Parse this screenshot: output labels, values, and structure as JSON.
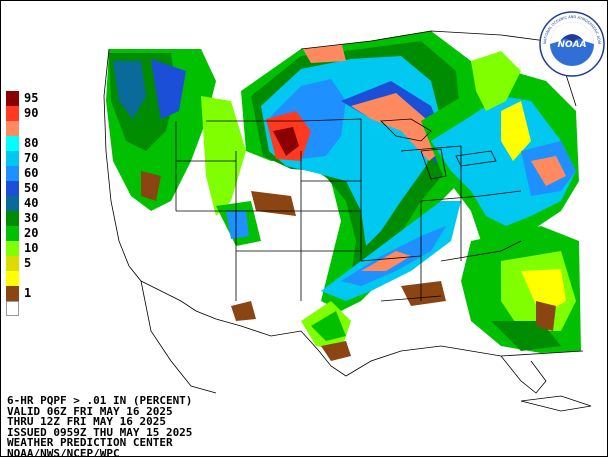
{
  "legend": [
    {
      "label": "95",
      "color": "#8b0000"
    },
    {
      "label": "90",
      "color": "#ff3a20"
    },
    {
      "label": "",
      "color": "#ff8a60"
    },
    {
      "label": "80",
      "color": "#00ffff"
    },
    {
      "label": "70",
      "color": "#00c8f0"
    },
    {
      "label": "60",
      "color": "#1e90ff"
    },
    {
      "label": "50",
      "color": "#1c4fd8"
    },
    {
      "label": "40",
      "color": "#0a6a9a"
    },
    {
      "label": "30",
      "color": "#008c00"
    },
    {
      "label": "20",
      "color": "#00c000"
    },
    {
      "label": "10",
      "color": "#7fff00"
    },
    {
      "label": "5",
      "color": "#dcdc00"
    },
    {
      "label": "",
      "color": "#ffff00"
    },
    {
      "label": "1",
      "color": "#8b4513"
    },
    {
      "label": "",
      "color": "#ffffff"
    }
  ],
  "info": {
    "line1": "6-HR PQPF > .01 IN (PERCENT)",
    "line2": "VALID 06Z FRI MAY 16 2025",
    "line3": "THRU 12Z FRI MAY 16 2025",
    "line4": "ISSUED 0959Z THU MAY 15 2025",
    "line5": "WEATHER PREDICTION CENTER",
    "line6": "NOAA/NWS/NCEP/WPC"
  },
  "logo": {
    "text": "NOAA",
    "ring_text": "NATIONAL OCEANIC AND ATMOSPHERIC ADMINISTRATION · U.S. DEPARTMENT OF COMMERCE",
    "color": "#1e3c96"
  }
}
